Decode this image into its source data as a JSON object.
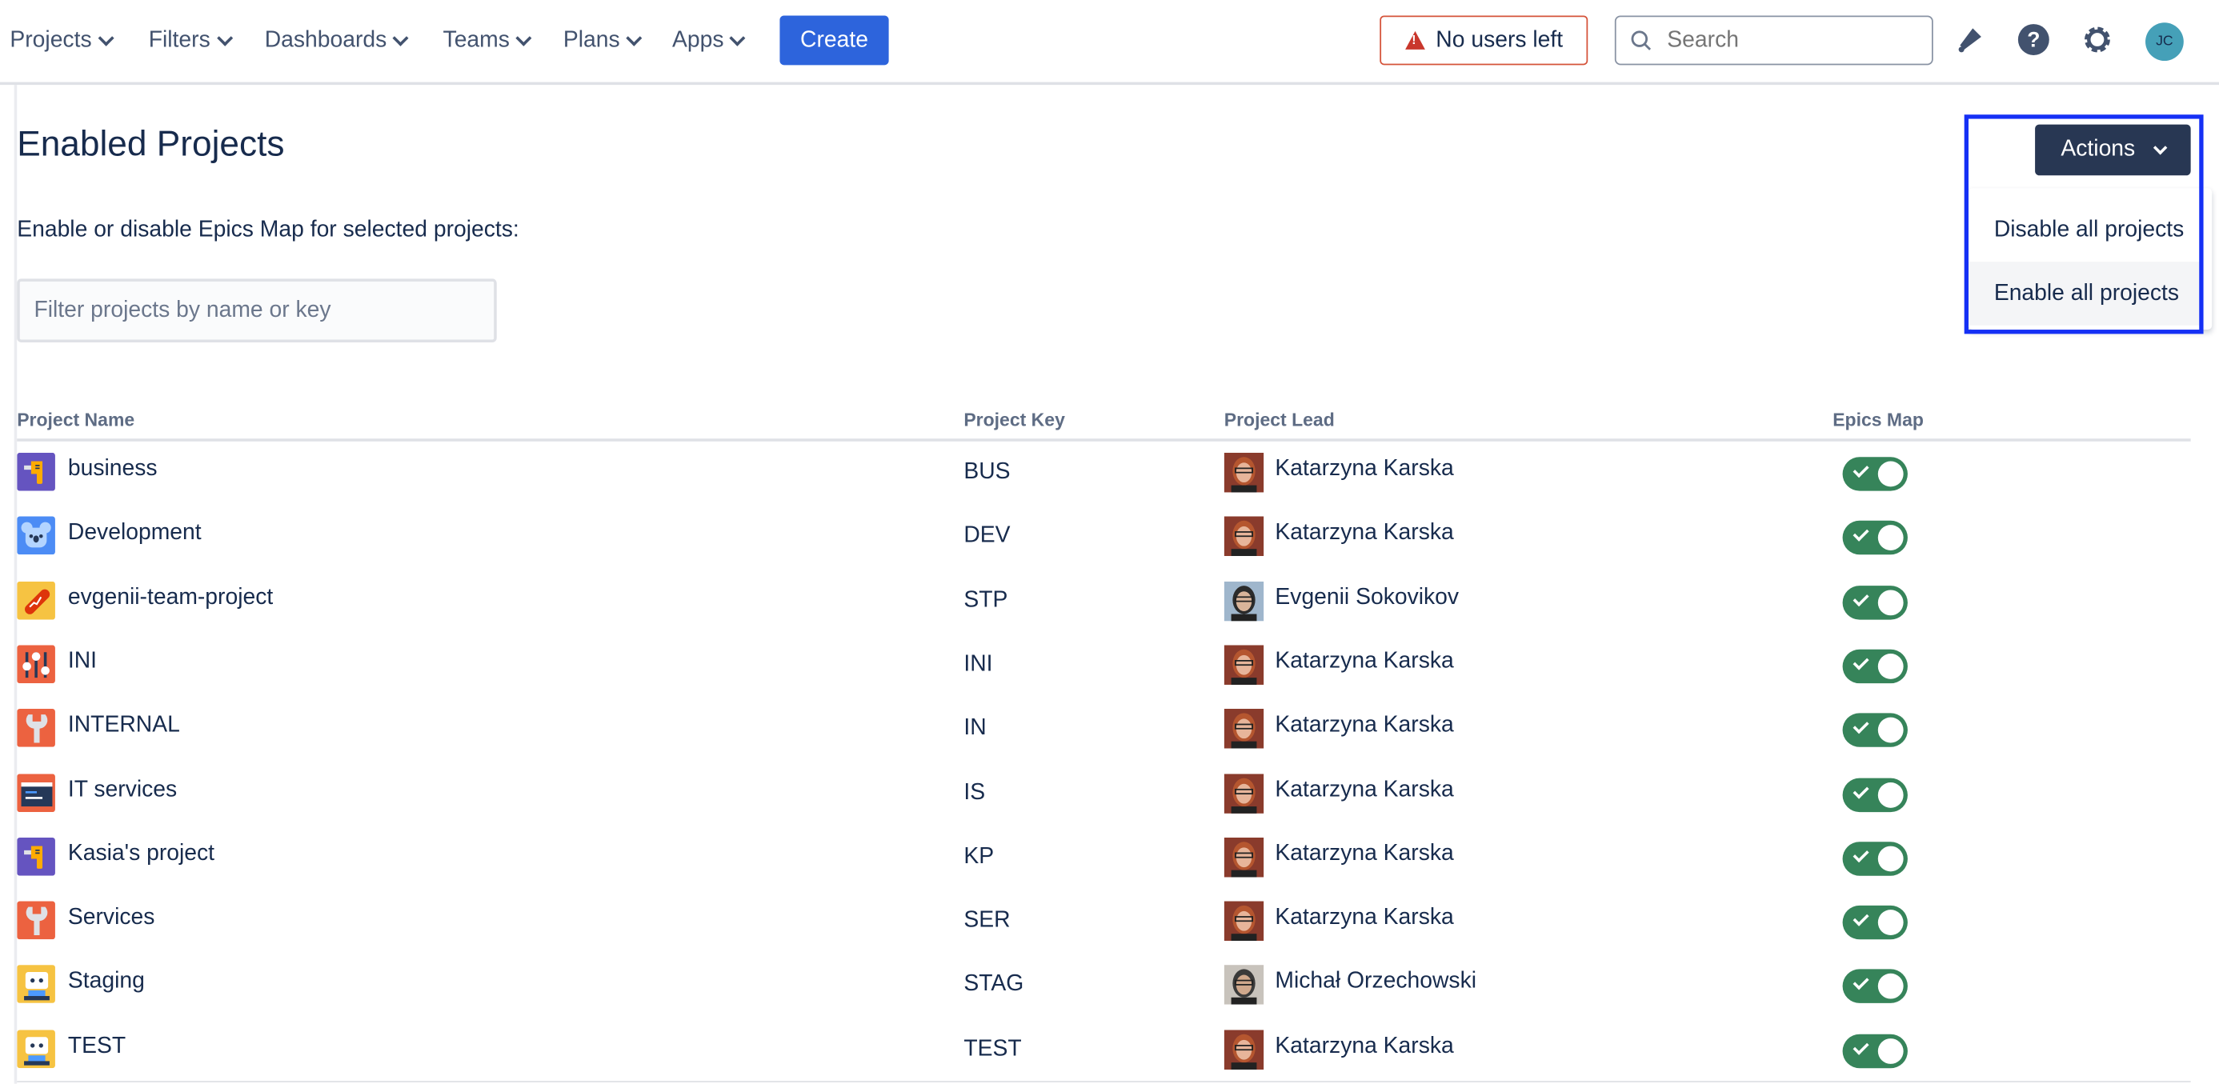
{
  "nav": {
    "items": [
      {
        "label": "Projects"
      },
      {
        "label": "Filters"
      },
      {
        "label": "Dashboards"
      },
      {
        "label": "Teams"
      },
      {
        "label": "Plans"
      },
      {
        "label": "Apps"
      }
    ],
    "create_label": "Create",
    "license_warning": "No users left",
    "search_placeholder": "Search",
    "user_initials": "JC"
  },
  "page": {
    "title": "Enabled Projects",
    "description": "Enable or disable Epics Map for selected projects:",
    "filter_placeholder": "Filter projects by name or key",
    "actions_label": "Actions",
    "actions_menu": [
      {
        "label": "Disable all projects"
      },
      {
        "label": "Enable all projects"
      }
    ]
  },
  "table": {
    "columns": [
      "Project Name",
      "Project Key",
      "Project Lead",
      "Epics Map"
    ],
    "rows": [
      {
        "name": "business",
        "key": "BUS",
        "lead": "Katarzyna Karska",
        "enabled": true,
        "icon": "drill-icon",
        "icon_color": "#6554c0"
      },
      {
        "name": "Development",
        "key": "DEV",
        "lead": "Katarzyna Karska",
        "enabled": true,
        "icon": "koala-icon",
        "icon_color": "#4c8cf5"
      },
      {
        "name": "evgenii-team-project",
        "key": "STP",
        "lead": "Evgenii Sokovikov",
        "enabled": true,
        "icon": "hotdog-icon",
        "icon_color": "#f6c342"
      },
      {
        "name": "INI",
        "key": "INI",
        "lead": "Katarzyna Karska",
        "enabled": true,
        "icon": "sliders-icon",
        "icon_color": "#ec6240"
      },
      {
        "name": "INTERNAL",
        "key": "IN",
        "lead": "Katarzyna Karska",
        "enabled": true,
        "icon": "wrench-icon",
        "icon_color": "#ec6240"
      },
      {
        "name": "IT services",
        "key": "IS",
        "lead": "Katarzyna Karska",
        "enabled": true,
        "icon": "terminal-icon",
        "icon_color": "#ec6240"
      },
      {
        "name": "Kasia's project",
        "key": "KP",
        "lead": "Katarzyna Karska",
        "enabled": true,
        "icon": "drill-icon",
        "icon_color": "#6554c0"
      },
      {
        "name": "Services",
        "key": "SER",
        "lead": "Katarzyna Karska",
        "enabled": true,
        "icon": "wrench-icon",
        "icon_color": "#ec6240"
      },
      {
        "name": "Staging",
        "key": "STAG",
        "lead": "Michał Orzechowski",
        "enabled": true,
        "icon": "robot-icon",
        "icon_color": "#f6c342"
      },
      {
        "name": "TEST",
        "key": "TEST",
        "lead": "Katarzyna Karska",
        "enabled": true,
        "icon": "robot-icon",
        "icon_color": "#f6c342"
      }
    ]
  },
  "colors": {
    "primary": "#2d64dc",
    "actions": "#283753",
    "toggle_on": "#36845a",
    "highlight": "#1530f5",
    "warning": "#c9372c"
  }
}
